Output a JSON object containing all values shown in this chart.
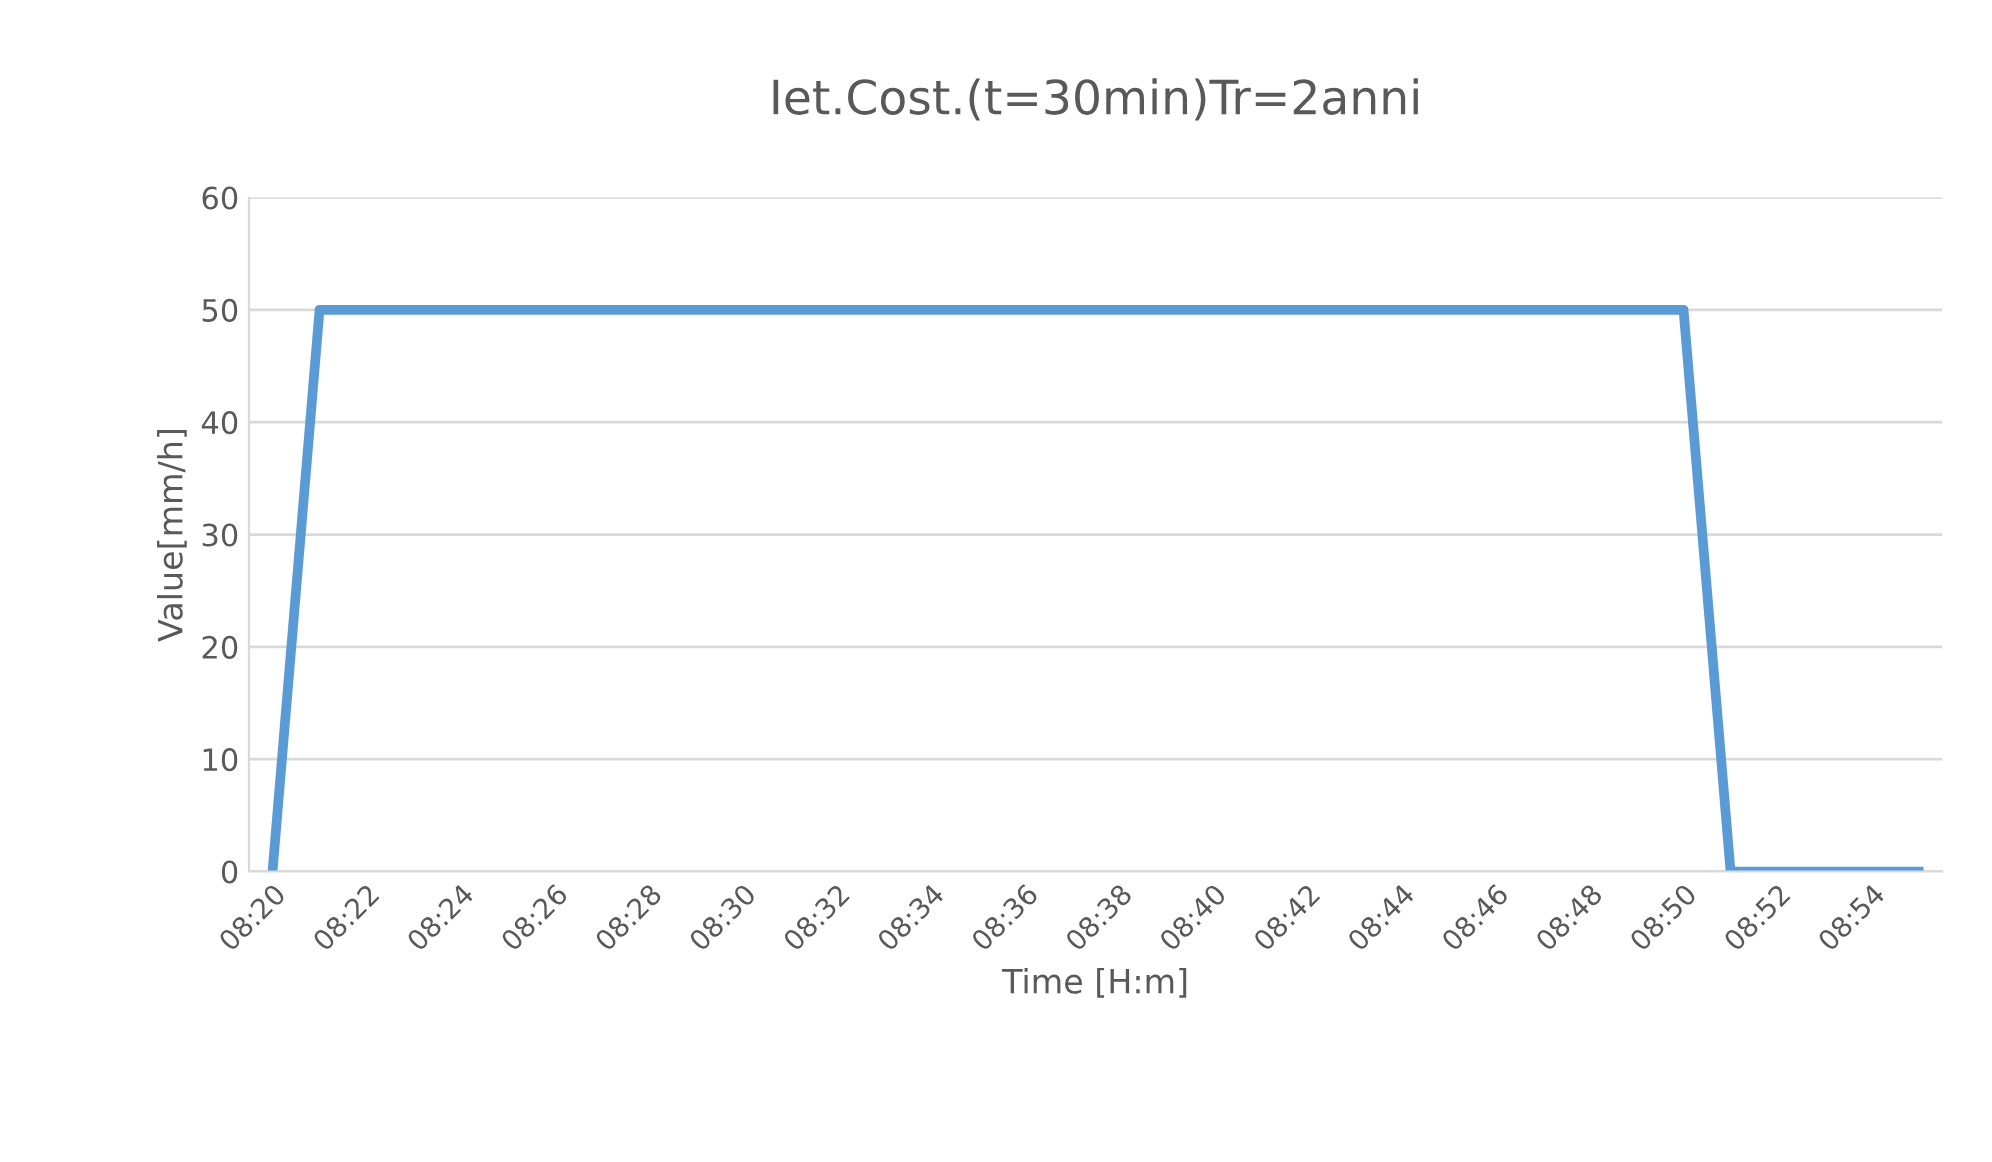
{
  "chart_data": {
    "type": "line",
    "title": "Iet.Cost.(t=30min)Tr=2anni",
    "xlabel": "Time [H:m]",
    "ylabel": "Value[mm/h]",
    "categories": [
      "08:20",
      null,
      "08:22",
      null,
      "08:24",
      null,
      "08:26",
      null,
      "08:28",
      null,
      "08:30",
      null,
      "08:32",
      null,
      "08:34",
      null,
      "08:36",
      null,
      "08:38",
      null,
      "08:40",
      null,
      "08:42",
      null,
      "08:44",
      null,
      "08:46",
      null,
      "08:48",
      null,
      "08:50",
      null,
      "08:52",
      null,
      "08:54",
      null
    ],
    "series": [
      {
        "color": "#5b9bd5",
        "values": [
          0,
          50,
          50,
          50,
          50,
          50,
          50,
          50,
          50,
          50,
          50,
          50,
          50,
          50,
          50,
          50,
          50,
          50,
          50,
          50,
          50,
          50,
          50,
          50,
          50,
          50,
          50,
          50,
          50,
          50,
          50,
          0,
          0,
          0,
          0,
          0
        ]
      }
    ],
    "ylim": [
      0,
      60
    ],
    "yticks": [
      0,
      10,
      20,
      30,
      40,
      50,
      60
    ],
    "grid": "y",
    "legend": false,
    "marker": "none",
    "line_style": "solid"
  }
}
